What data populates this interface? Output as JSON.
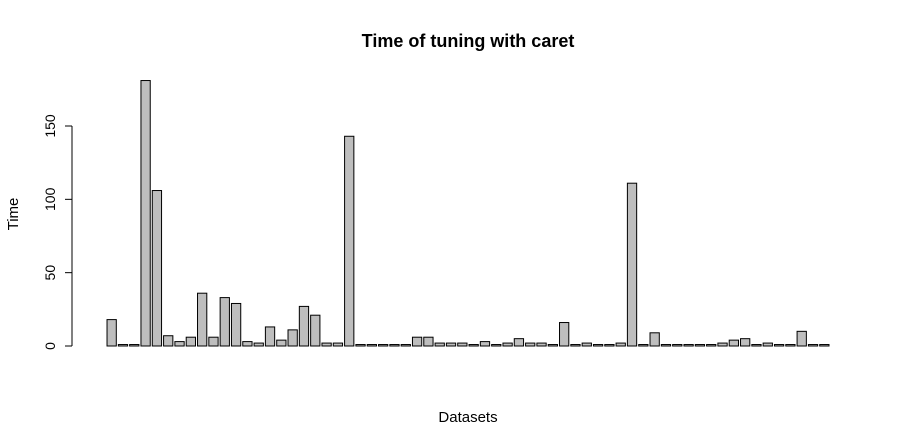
{
  "chart_data": {
    "type": "bar",
    "title": "Time of tuning with caret",
    "xlabel": "Datasets",
    "ylabel": "Time",
    "ylim": [
      0,
      182
    ],
    "y_ticks": [
      0,
      50,
      100,
      150
    ],
    "y_tick_labels": [
      "0",
      "50",
      "100",
      "150"
    ],
    "grid": false,
    "values": [
      18,
      1,
      1,
      181,
      106,
      7,
      3,
      6,
      36,
      6,
      33,
      29,
      3,
      2,
      13,
      4,
      11,
      27,
      21,
      2,
      2,
      143,
      1,
      1,
      1,
      1,
      1,
      6,
      6,
      2,
      2,
      2,
      1,
      3,
      1,
      2,
      5,
      2,
      2,
      1,
      16,
      1,
      2,
      1,
      1,
      2,
      111,
      1,
      9,
      1,
      1,
      1,
      1,
      1,
      2,
      4,
      5,
      1,
      2,
      1,
      1,
      10,
      1,
      1
    ]
  },
  "colors": {
    "bar_fill": "#bebebe",
    "bar_stroke": "#000000"
  }
}
